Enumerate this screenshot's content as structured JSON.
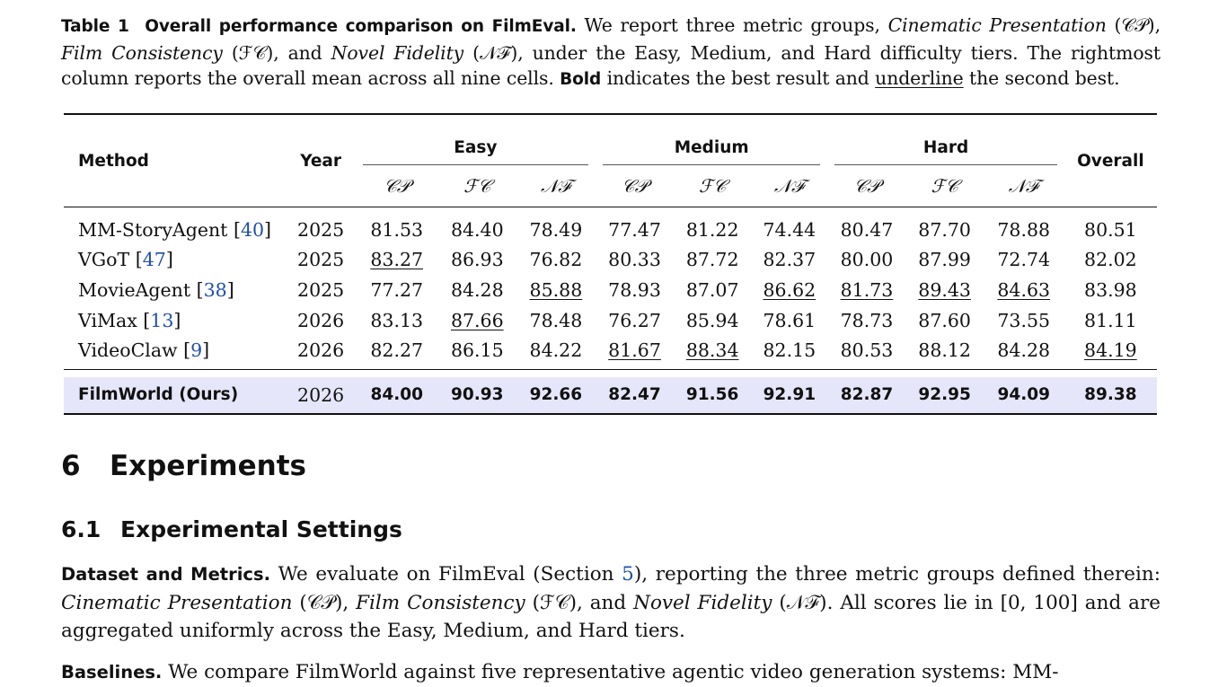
{
  "caption": {
    "label": "Table 1",
    "title": "Overall performance comparison on FilmEval.",
    "s1": "We report three metric groups,",
    "cp_name": "Cinematic Presentation",
    "cp_abbr": "(𝒞𝒫),",
    "fc_name": "Film Consistency",
    "fc_abbr": "(ℱ𝒞), and",
    "nf_name": "Novel Fidelity",
    "nf_abbr": "(𝒩ℱ), under the Easy, Medium, and Hard difficulty tiers. The rightmost column reports the overall mean across all nine cells.",
    "bold_word": "Bold",
    "s2": "indicates the best result and",
    "underline_word": "underline",
    "s3": "the second best."
  },
  "table": {
    "headers": {
      "method": "Method",
      "year": "Year",
      "easy": "Easy",
      "medium": "Medium",
      "hard": "Hard",
      "overall": "Overall",
      "cp": "𝒞𝒫",
      "fc": "ℱ𝒞",
      "nf": "𝒩ℱ"
    },
    "rows": [
      {
        "name": "MM-StoryAgent",
        "ref": "40",
        "year": "2025",
        "vals": [
          "81.53",
          "84.40",
          "78.49",
          "77.47",
          "81.22",
          "74.44",
          "80.47",
          "87.70",
          "78.88",
          "80.51"
        ]
      },
      {
        "name": "VGoT",
        "ref": "47",
        "year": "2025",
        "vals": [
          "83.27",
          "86.93",
          "76.82",
          "80.33",
          "87.72",
          "82.37",
          "80.00",
          "87.99",
          "72.74",
          "82.02"
        ]
      },
      {
        "name": "MovieAgent",
        "ref": "38",
        "year": "2025",
        "vals": [
          "77.27",
          "84.28",
          "85.88",
          "78.93",
          "87.07",
          "86.62",
          "81.73",
          "89.43",
          "84.63",
          "83.98"
        ]
      },
      {
        "name": "ViMax",
        "ref": "13",
        "year": "2026",
        "vals": [
          "83.13",
          "87.66",
          "78.48",
          "76.27",
          "85.94",
          "78.61",
          "78.73",
          "87.60",
          "73.55",
          "81.11"
        ]
      },
      {
        "name": "VideoClaw",
        "ref": "9",
        "year": "2026",
        "vals": [
          "82.27",
          "86.15",
          "84.22",
          "81.67",
          "88.34",
          "82.15",
          "80.53",
          "88.12",
          "84.28",
          "84.19"
        ]
      }
    ],
    "ours": {
      "name": "FilmWorld (Ours)",
      "year": "2026",
      "vals": [
        "84.00",
        "90.93",
        "92.66",
        "82.47",
        "91.56",
        "92.91",
        "82.87",
        "92.95",
        "94.09",
        "89.38"
      ]
    }
  },
  "section": {
    "num": "6",
    "title": "Experiments"
  },
  "subsection": {
    "num": "6.1",
    "title": "Experimental Settings"
  },
  "para1": {
    "lead": "Dataset and Metrics.",
    "t1": "We evaluate on FilmEval (Section",
    "ref": "5",
    "t2": "), reporting the three metric groups defined therein:",
    "cp_name": "Cinematic Presentation",
    "cp_abbr": "(𝒞𝒫),",
    "fc_name": "Film Consistency",
    "fc_abbr": "(ℱ𝒞), and",
    "nf_name": "Novel Fidelity",
    "t3": "(𝒩ℱ). All scores lie in [0, 100] and are aggregated uniformly across the Easy, Medium, and Hard tiers."
  },
  "para2": {
    "lead": "Baselines.",
    "t1": "We compare FilmWorld against five representative agentic video generation systems: MM-"
  }
}
